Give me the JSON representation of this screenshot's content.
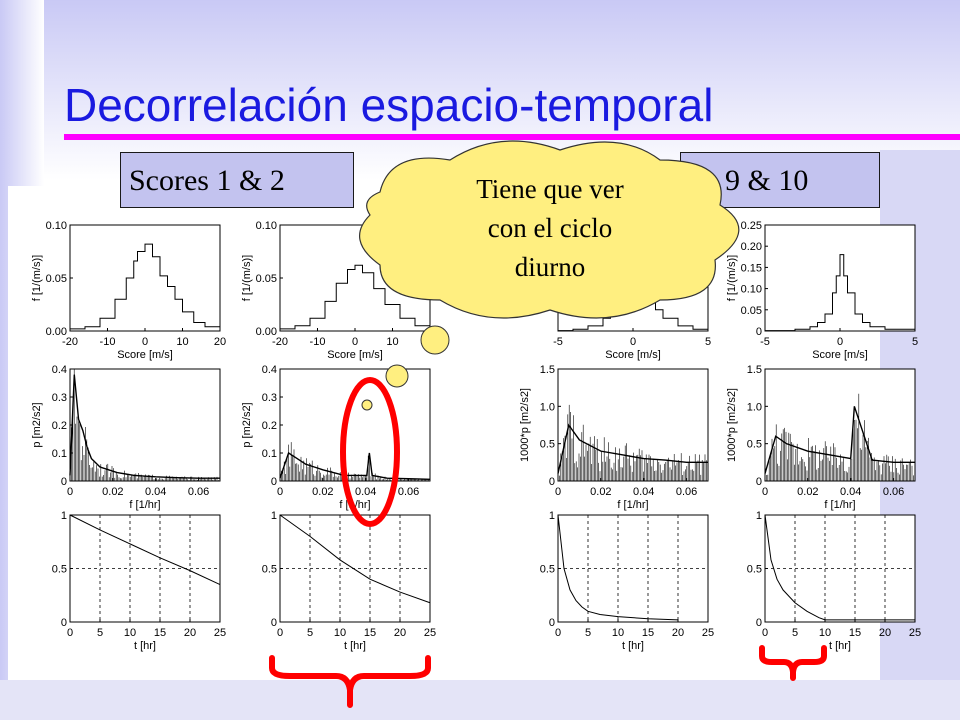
{
  "slide": {
    "title": "Decorrelación espacio-temporal",
    "colors": {
      "title": "#1a1ae0",
      "underline": "#ff00ff",
      "label_box": "#c3c3ef",
      "bubble": "#ffef80",
      "annotation": "#ff0000"
    }
  },
  "labels": {
    "left": "Scores 1 & 2",
    "right": "Scores 9 & 10",
    "right_visible": "9 & 10"
  },
  "bubble": {
    "lines": [
      "Tiene que ver",
      "con el ciclo",
      "diurno"
    ]
  },
  "chart_data": [
    {
      "type": "line",
      "name": "score1-histogram",
      "ylabel": "f [1/(m/s)]",
      "xlabel": "Score [m/s]",
      "xlim": [
        -20,
        20
      ],
      "ylim": [
        0,
        0.1
      ],
      "xticks": [
        "-20",
        "-10",
        "0",
        "10",
        "20"
      ],
      "yticks": [
        "0.00",
        "0.05",
        "0.10"
      ],
      "x": [
        -20,
        -16,
        -12,
        -8,
        -5,
        -3,
        -2,
        0,
        2,
        4,
        6,
        8,
        10,
        13,
        16,
        20
      ],
      "values": [
        0.002,
        0.004,
        0.012,
        0.03,
        0.05,
        0.066,
        0.075,
        0.082,
        0.07,
        0.052,
        0.042,
        0.03,
        0.018,
        0.008,
        0.004,
        0.002
      ]
    },
    {
      "type": "line",
      "name": "score2-histogram",
      "ylabel": "f [1/(m/s)]",
      "xlabel": "Score [m/s]",
      "xlim": [
        -20,
        20
      ],
      "ylim": [
        0,
        0.1
      ],
      "xticks": [
        "-20",
        "-10",
        "0",
        "10",
        "20"
      ],
      "yticks": [
        "0.00",
        "0.05",
        "0.10"
      ],
      "x": [
        -20,
        -16,
        -12,
        -8,
        -5,
        -2,
        0,
        2,
        5,
        8,
        12,
        16,
        20
      ],
      "values": [
        0.002,
        0.005,
        0.012,
        0.028,
        0.045,
        0.058,
        0.062,
        0.055,
        0.04,
        0.025,
        0.012,
        0.005,
        0.002
      ]
    },
    {
      "type": "line",
      "name": "score9-histogram",
      "ylabel": "",
      "xlabel": "Score [m/s]",
      "xlim": [
        -5,
        5
      ],
      "ylim": [
        0,
        0.25
      ],
      "xticks": [
        "-5",
        "0",
        "5"
      ],
      "yticks": [],
      "x": [
        -5,
        -4,
        -3,
        -2,
        -1.5,
        -1,
        -0.5,
        0,
        0.5,
        1,
        1.5,
        2,
        3,
        4,
        5
      ],
      "values": [
        0.001,
        0.004,
        0.012,
        0.03,
        0.05,
        0.08,
        0.11,
        0.12,
        0.1,
        0.075,
        0.05,
        0.03,
        0.012,
        0.004,
        0.001
      ]
    },
    {
      "type": "line",
      "name": "score10-histogram",
      "ylabel": "f [1/(m/s)]",
      "xlabel": "Score [m/s]",
      "xlim": [
        -5,
        5
      ],
      "ylim": [
        0,
        0.25
      ],
      "xticks": [
        "-5",
        "0",
        "5"
      ],
      "yticks": [
        "0",
        "0.05",
        "0.10",
        "0.15",
        "0.20",
        "0.25"
      ],
      "x": [
        -5,
        -3,
        -2,
        -1.5,
        -1,
        -0.5,
        -0.25,
        0,
        0.25,
        0.5,
        1,
        1.5,
        2,
        3,
        5
      ],
      "values": [
        0.001,
        0.004,
        0.01,
        0.02,
        0.04,
        0.09,
        0.13,
        0.18,
        0.13,
        0.09,
        0.04,
        0.02,
        0.01,
        0.004,
        0.001
      ]
    },
    {
      "type": "line",
      "name": "score1-spectrum",
      "ylabel": "p [m2/s2]",
      "xlabel": "f [1/hr]",
      "xlim": [
        0,
        0.07
      ],
      "ylim": [
        0,
        0.4
      ],
      "xticks": [
        "0",
        "0.02",
        "0.04",
        "0.06"
      ],
      "yticks": [
        "0",
        "0.1",
        "0.2",
        "0.3",
        "0.4"
      ],
      "x": [
        0,
        0.002,
        0.004,
        0.006,
        0.008,
        0.01,
        0.014,
        0.018,
        0.022,
        0.03,
        0.04,
        0.05,
        0.06,
        0.07
      ],
      "values": [
        0.02,
        0.38,
        0.22,
        0.18,
        0.12,
        0.08,
        0.05,
        0.04,
        0.03,
        0.02,
        0.015,
        0.012,
        0.01,
        0.01
      ]
    },
    {
      "type": "line",
      "name": "score2-spectrum",
      "ylabel": "p [m2/s2]",
      "xlabel": "f [1/hr]",
      "xlim": [
        0,
        0.07
      ],
      "ylim": [
        0,
        0.4
      ],
      "xticks": [
        "0",
        "0.02",
        "0.04",
        "0.06"
      ],
      "yticks": [
        "0",
        "0.1",
        "0.2",
        "0.3",
        "0.4"
      ],
      "x": [
        0,
        0.004,
        0.008,
        0.012,
        0.016,
        0.02,
        0.03,
        0.0405,
        0.0417,
        0.043,
        0.05,
        0.06,
        0.07
      ],
      "values": [
        0.01,
        0.1,
        0.08,
        0.06,
        0.05,
        0.04,
        0.02,
        0.02,
        0.1,
        0.02,
        0.01,
        0.008,
        0.006
      ]
    },
    {
      "type": "line",
      "name": "score9-spectrum",
      "ylabel": "1000*p [m2/s2]",
      "xlabel": "f [1/hr]",
      "xlim": [
        0,
        0.07
      ],
      "ylim": [
        0,
        1.5
      ],
      "xticks": [
        "0",
        "0.02",
        "0.04",
        "0.06"
      ],
      "yticks": [
        "0",
        "0.5",
        "1.0",
        "1.5"
      ],
      "x": [
        0,
        0.005,
        0.01,
        0.02,
        0.03,
        0.04,
        0.05,
        0.06,
        0.07
      ],
      "values": [
        0.1,
        0.75,
        0.55,
        0.4,
        0.35,
        0.3,
        0.28,
        0.25,
        0.25
      ]
    },
    {
      "type": "line",
      "name": "score10-spectrum",
      "ylabel": "1000*p [m2/s2]",
      "xlabel": "f [1/hr]",
      "xlim": [
        0,
        0.07
      ],
      "ylim": [
        0,
        1.5
      ],
      "xticks": [
        "0",
        "0.02",
        "0.04",
        "0.06"
      ],
      "yticks": [
        "0",
        "0.5",
        "1.0",
        "1.5"
      ],
      "x": [
        0,
        0.005,
        0.01,
        0.02,
        0.03,
        0.04,
        0.0417,
        0.05,
        0.06,
        0.07
      ],
      "values": [
        0.1,
        0.6,
        0.5,
        0.4,
        0.35,
        0.3,
        1.0,
        0.28,
        0.25,
        0.25
      ]
    },
    {
      "type": "line",
      "name": "score1-autocorrelation",
      "ylabel": "",
      "xlabel": "t [hr]",
      "xlim": [
        0,
        25
      ],
      "ylim": [
        0,
        1
      ],
      "xticks": [
        "0",
        "5",
        "10",
        "15",
        "20",
        "25"
      ],
      "yticks": [
        "0",
        "0.5",
        "1"
      ],
      "x": [
        0,
        5,
        10,
        15,
        20,
        25
      ],
      "values": [
        1.0,
        0.86,
        0.73,
        0.6,
        0.48,
        0.35
      ]
    },
    {
      "type": "line",
      "name": "score2-autocorrelation",
      "ylabel": "",
      "xlabel": "t [hr]",
      "xlim": [
        0,
        25
      ],
      "ylim": [
        0,
        1
      ],
      "xticks": [
        "0",
        "5",
        "10",
        "15",
        "20",
        "25"
      ],
      "yticks": [
        "0",
        "0.5",
        "1"
      ],
      "x": [
        0,
        5,
        10,
        15,
        20,
        25
      ],
      "values": [
        1.0,
        0.8,
        0.58,
        0.4,
        0.28,
        0.18
      ]
    },
    {
      "type": "line",
      "name": "score9-autocorrelation",
      "ylabel": "",
      "xlabel": "t [hr]",
      "xlim": [
        0,
        25
      ],
      "ylim": [
        0,
        1
      ],
      "xticks": [
        "0",
        "5",
        "10",
        "15",
        "20",
        "25"
      ],
      "yticks": [
        "0",
        "0.5",
        "1"
      ],
      "x": [
        0,
        1,
        2,
        3,
        4,
        5,
        7,
        10,
        15,
        20
      ],
      "values": [
        1.0,
        0.5,
        0.3,
        0.2,
        0.14,
        0.1,
        0.07,
        0.05,
        0.03,
        0.02
      ]
    },
    {
      "type": "line",
      "name": "score10-autocorrelation",
      "ylabel": "",
      "xlabel": "t [hr]",
      "xlim": [
        0,
        25
      ],
      "ylim": [
        0,
        1
      ],
      "xticks": [
        "0",
        "5",
        "10",
        "15",
        "20",
        "25"
      ],
      "yticks": [
        "0",
        "0.5",
        "1"
      ],
      "x": [
        0,
        1,
        2,
        3,
        5,
        7,
        9,
        10,
        15,
        20,
        25
      ],
      "values": [
        1.0,
        0.58,
        0.4,
        0.3,
        0.18,
        0.1,
        0.04,
        0.02,
        0.02,
        0.02,
        0.02
      ]
    }
  ]
}
